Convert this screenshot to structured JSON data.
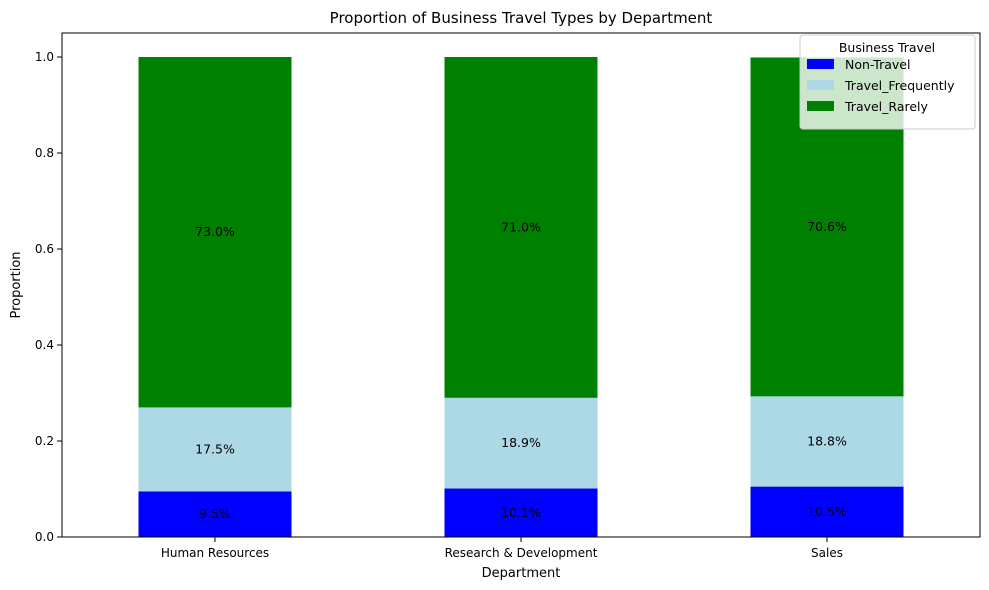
{
  "chart_data": {
    "type": "bar",
    "stacked": true,
    "title": "Proportion of Business Travel Types by Department",
    "xlabel": "Department",
    "ylabel": "Proportion",
    "categories": [
      "Human Resources",
      "Research & Development",
      "Sales"
    ],
    "ylim": [
      0,
      1.05
    ],
    "yticks": [
      "0.0",
      "0.2",
      "0.4",
      "0.6",
      "0.8",
      "1.0"
    ],
    "grid": false,
    "legend": {
      "title": "Business Travel",
      "placement": "top-right"
    },
    "series": [
      {
        "name": "Non-Travel",
        "color": "#0000ff",
        "values": [
          0.095,
          0.101,
          0.105
        ],
        "labels": [
          "9.5%",
          "10.1%",
          "10.5%"
        ]
      },
      {
        "name": "Travel_Frequently",
        "color": "#add8e6",
        "values": [
          0.175,
          0.189,
          0.188
        ],
        "labels": [
          "17.5%",
          "18.9%",
          "18.8%"
        ]
      },
      {
        "name": "Travel_Rarely",
        "color": "#008000",
        "values": [
          0.73,
          0.71,
          0.706
        ],
        "labels": [
          "73.0%",
          "71.0%",
          "70.6%"
        ]
      }
    ]
  }
}
